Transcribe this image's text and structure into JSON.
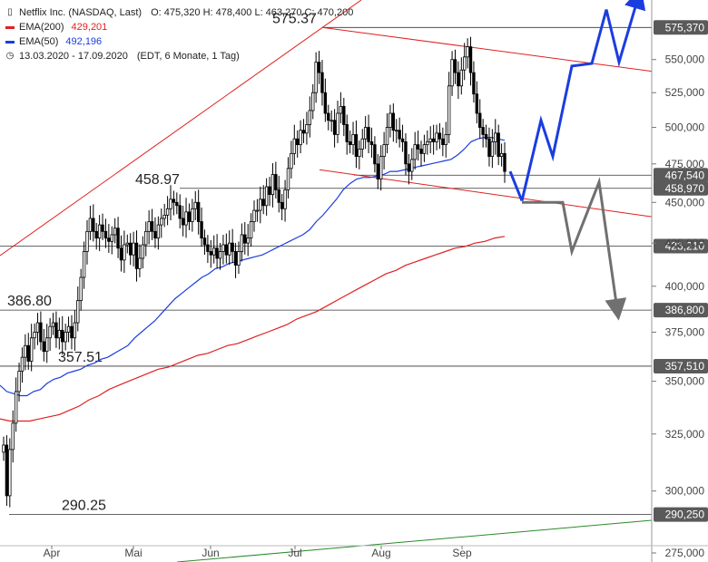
{
  "legend": {
    "title": "Netflix Inc. (NASDAQ, Last)",
    "ohlc": "O: 475,320  H: 478,400  L: 463,270  C: 470,200",
    "ema200_label": "EMA(200)",
    "ema200_value": "429,201",
    "ema50_label": "EMA(50)",
    "ema50_value": "492,196",
    "period": "13.03.2020 - 17.09.2020",
    "period_info": "(EDT, 6 Monate, 1 Tag)"
  },
  "colors": {
    "candle": "#000000",
    "ema200": "#e02020",
    "ema50": "#1a3de0",
    "channel": "#e02020",
    "level_line": "#333333",
    "scenario_up": "#1a3de0",
    "scenario_down": "#707070",
    "long_trend": "#2a8a2a",
    "axis_label_bg": "#5a5a5a"
  },
  "chart_data": {
    "type": "candlestick",
    "x_axis_labels": [
      "Apr",
      "Mai",
      "Jun",
      "Jul",
      "Aug",
      "Sep"
    ],
    "y_axis_ticks": [
      "275,000",
      "300,000",
      "325,000",
      "350,000",
      "375,000",
      "400,000",
      "425,000",
      "450,000",
      "475,000",
      "500,000",
      "525,000",
      "550,000"
    ],
    "ylim": [
      275,
      580
    ],
    "y_scale": "log",
    "horizontal_levels": [
      {
        "value": 575.37,
        "axis_label": "575,370",
        "chart_label": "575.37"
      },
      {
        "value": 467.54,
        "axis_label": "467,540",
        "chart_label": ""
      },
      {
        "value": 458.97,
        "axis_label": "458,970",
        "chart_label": "458.97"
      },
      {
        "value": 423.21,
        "axis_label": "423,210",
        "chart_label": ""
      },
      {
        "value": 386.8,
        "axis_label": "386,800",
        "chart_label": "386.80"
      },
      {
        "value": 357.51,
        "axis_label": "357,510",
        "chart_label": "357.51"
      },
      {
        "value": 290.25,
        "axis_label": "290,250",
        "chart_label": "290.25"
      }
    ],
    "closes": [
      320,
      298,
      318,
      330,
      345,
      355,
      362,
      368,
      360,
      372,
      375,
      380,
      370,
      365,
      372,
      378,
      380,
      372,
      376,
      370,
      375,
      378,
      372,
      380,
      392,
      405,
      420,
      432,
      440,
      432,
      428,
      436,
      432,
      428,
      426,
      430,
      434,
      422,
      415,
      424,
      425,
      418,
      425,
      410,
      416,
      424,
      432,
      438,
      432,
      428,
      436,
      440,
      442,
      446,
      452,
      450,
      448,
      440,
      436,
      444,
      438,
      446,
      450,
      438,
      428,
      424,
      420,
      418,
      422,
      416,
      420,
      424,
      418,
      425,
      420,
      412,
      420,
      430,
      425,
      428,
      438,
      445,
      445,
      452,
      448,
      460,
      455,
      468,
      458,
      450,
      446,
      458,
      472,
      482,
      492,
      488,
      498,
      496,
      502,
      512,
      525,
      548,
      540,
      525,
      510,
      505,
      505,
      495,
      510,
      515,
      502,
      490,
      488,
      495,
      480,
      485,
      492,
      500,
      490,
      488,
      475,
      465,
      480,
      488,
      500,
      510,
      498,
      498,
      492,
      490,
      475,
      470,
      478,
      488,
      485,
      482,
      488,
      490,
      492,
      490,
      496,
      492,
      488,
      495,
      530,
      550,
      540,
      530,
      542,
      552,
      560,
      540,
      524,
      510,
      500,
      495,
      492,
      480,
      490,
      496,
      480,
      482,
      470
    ],
    "ema50": [
      348,
      345,
      344,
      343,
      343,
      345,
      346,
      349,
      351,
      352,
      354,
      355,
      356,
      358,
      359,
      361,
      362,
      364,
      366,
      368,
      372,
      375,
      378,
      381,
      385,
      389,
      393,
      396,
      399,
      402,
      405,
      407,
      410,
      411,
      413,
      414,
      415,
      416,
      417,
      418,
      420,
      422,
      424,
      426,
      428,
      430,
      433,
      438,
      442,
      447,
      452,
      458,
      462,
      465,
      466,
      466,
      467,
      468,
      470,
      470,
      471,
      472,
      473,
      474,
      475,
      476,
      477,
      478,
      481,
      485,
      490,
      492,
      493,
      493,
      492,
      491
    ],
    "ema200": [
      332,
      331,
      331,
      331,
      332,
      333,
      334,
      336,
      338,
      341,
      343,
      346,
      348,
      350,
      352,
      354,
      356,
      357,
      359,
      361,
      363,
      364,
      366,
      368,
      369,
      371,
      373,
      375,
      377,
      379,
      382,
      384,
      386,
      389,
      392,
      395,
      398,
      401,
      404,
      407,
      409,
      412,
      414,
      416,
      418,
      420,
      422,
      423,
      425,
      426,
      428,
      429
    ],
    "trend_channel_upper": [
      575.37,
      541
    ],
    "trend_channel_lower": [
      467.54,
      441
    ],
    "long_uptrend_line": true,
    "scenario_bullish": [
      451,
      505,
      480,
      545,
      547,
      590,
      548,
      600
    ],
    "scenario_bearish": [
      450,
      450,
      420,
      463,
      387
    ]
  }
}
